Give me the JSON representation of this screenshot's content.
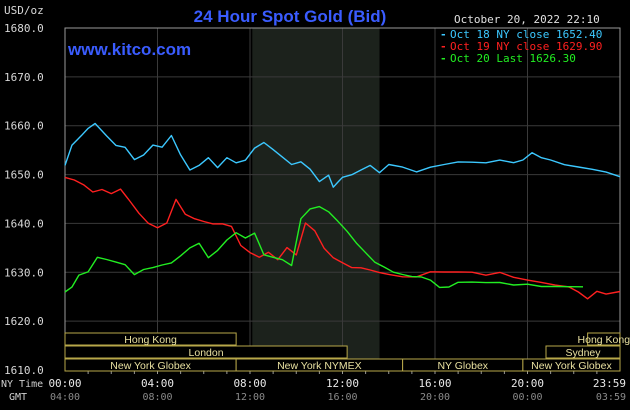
{
  "chart_data": {
    "type": "line",
    "title": "24 Hour Spot Gold (Bid)",
    "timestamp": "October 20, 2022 22:10",
    "watermark": "www.kitco.com",
    "y_unit": "USD/oz",
    "ylim": [
      1610,
      1680
    ],
    "y_ticks": [
      {
        "value": 1680,
        "label": "1680.0"
      },
      {
        "value": 1670,
        "label": "1670.0"
      },
      {
        "value": 1660,
        "label": "1660.0"
      },
      {
        "value": 1650,
        "label": "1650.0"
      },
      {
        "value": 1640,
        "label": "1640.0"
      },
      {
        "value": 1630,
        "label": "1630.0"
      },
      {
        "value": 1620,
        "label": "1620.0"
      },
      {
        "value": 1610,
        "label": "1610.0"
      }
    ],
    "xlim": [
      0,
      24
    ],
    "x_ticks": [
      {
        "hour": 0,
        "ny": "00:00",
        "gmt": "04:00"
      },
      {
        "hour": 4,
        "ny": "04:00",
        "gmt": "08:00"
      },
      {
        "hour": 8,
        "ny": "08:00",
        "gmt": "12:00"
      },
      {
        "hour": 12,
        "ny": "12:00",
        "gmt": "16:00"
      },
      {
        "hour": 16,
        "ny": "16:00",
        "gmt": "20:00"
      },
      {
        "hour": 20,
        "ny": "20:00",
        "gmt": "00:00"
      },
      {
        "hour": 24,
        "ny": "23:59",
        "gmt": "03:59"
      }
    ],
    "x_axis_labels": {
      "ny": "NY Time",
      "gmt": "GMT"
    },
    "nymex_shade": [
      8.1,
      13.6
    ],
    "legend_placement": "top-right",
    "series": [
      {
        "name": "Oct 18 NY close 1652.40",
        "color": "#3cc8ff",
        "x": [
          0,
          0.3,
          0.7,
          1.0,
          1.3,
          1.8,
          2.2,
          2.6,
          3.0,
          3.4,
          3.8,
          4.2,
          4.6,
          5.0,
          5.4,
          5.8,
          6.2,
          6.6,
          7.0,
          7.4,
          7.8,
          8.2,
          8.6,
          9.0,
          9.4,
          9.8,
          10.2,
          10.6,
          11.0,
          11.4,
          11.6,
          11.8,
          12.0,
          12.4,
          12.8,
          13.2,
          13.6,
          14.0,
          14.6,
          15.2,
          15.8,
          16.4,
          17.0,
          17.6,
          18.2,
          18.8,
          19.4,
          19.8,
          20.2,
          20.6,
          21.0,
          21.6,
          22.2,
          22.8,
          23.4,
          24.0
        ],
        "values": [
          1652,
          1656,
          1658,
          1659.5,
          1660.5,
          1658,
          1656,
          1655.5,
          1653,
          1654,
          1656,
          1655.5,
          1658,
          1654,
          1651,
          1652,
          1653.5,
          1651.5,
          1653.5,
          1652.5,
          1653,
          1655.5,
          1656.5,
          1655,
          1653.5,
          1652,
          1652.5,
          1651,
          1648.5,
          1650,
          1647.5,
          1648.5,
          1649.5,
          1650,
          1651,
          1652,
          1650.5,
          1652,
          1651.5,
          1650.5,
          1651.5,
          1652,
          1652.5,
          1652.5,
          1652.5,
          1653,
          1652.5,
          1653,
          1654.5,
          1653.5,
          1653,
          1652,
          1651.5,
          1651,
          1650.5,
          1649.5
        ]
      },
      {
        "name": "Oct 19 NY close 1629.90",
        "color": "#ff2020",
        "x": [
          0,
          0.4,
          0.8,
          1.2,
          1.6,
          2.0,
          2.4,
          2.8,
          3.2,
          3.6,
          4.0,
          4.4,
          4.8,
          5.2,
          5.6,
          6.0,
          6.4,
          6.8,
          7.2,
          7.6,
          8.0,
          8.4,
          8.8,
          9.2,
          9.6,
          10.0,
          10.4,
          10.8,
          11.2,
          11.6,
          12.0,
          12.4,
          12.8,
          13.2,
          13.6,
          14.0,
          14.6,
          15.2,
          15.8,
          16.4,
          17.0,
          17.6,
          18.2,
          18.8,
          19.4,
          20.0,
          20.6,
          21.2,
          21.8,
          22.2,
          22.6,
          23.0,
          23.4,
          24.0
        ],
        "values": [
          1649.5,
          1649,
          1648,
          1646.5,
          1647,
          1646,
          1647,
          1644.5,
          1642,
          1640,
          1639,
          1640,
          1645,
          1642,
          1641,
          1640.5,
          1640,
          1640,
          1639.5,
          1635.5,
          1634,
          1633,
          1634,
          1632.5,
          1635,
          1633.5,
          1640,
          1638.5,
          1635,
          1633,
          1632,
          1631,
          1631,
          1630.5,
          1630,
          1629.5,
          1629,
          1629,
          1630,
          1630,
          1630,
          1630,
          1629.5,
          1630,
          1629,
          1628.5,
          1628,
          1627.5,
          1627,
          1626,
          1624.5,
          1626,
          1625.5,
          1626
        ]
      },
      {
        "name": "Oct 20 Last 1626.30",
        "color": "#22ee22",
        "x": [
          0,
          0.3,
          0.6,
          1.0,
          1.4,
          1.8,
          2.2,
          2.6,
          3.0,
          3.4,
          3.8,
          4.2,
          4.6,
          5.0,
          5.4,
          5.8,
          6.2,
          6.6,
          7.0,
          7.4,
          7.8,
          8.2,
          8.6,
          9.0,
          9.4,
          9.8,
          10.2,
          10.6,
          11.0,
          11.4,
          11.8,
          12.2,
          12.6,
          13.0,
          13.4,
          13.8,
          14.2,
          14.6,
          15.0,
          15.4,
          15.8,
          16.2,
          16.6,
          17.0,
          17.6,
          18.2,
          18.8,
          19.4,
          20.0,
          20.6,
          21.2,
          21.8,
          22.4
        ],
        "values": [
          1626,
          1627,
          1629.5,
          1630,
          1633,
          1632.5,
          1632,
          1631.5,
          1629.5,
          1630.5,
          1631,
          1631.5,
          1632,
          1633.5,
          1635,
          1636,
          1633,
          1634.5,
          1636.5,
          1638,
          1637,
          1638,
          1633.5,
          1633,
          1632.5,
          1631.5,
          1641,
          1643,
          1643.5,
          1642.5,
          1640.5,
          1638.5,
          1636,
          1634,
          1632,
          1631,
          1630,
          1629.5,
          1629,
          1629,
          1628.5,
          1627,
          1627,
          1628,
          1628,
          1628,
          1628,
          1627.5,
          1627.5,
          1627,
          1627,
          1627,
          1627
        ]
      }
    ],
    "sessions": [
      {
        "label": "Hong Kong",
        "row": 0,
        "start": 0,
        "end": 7.4
      },
      {
        "label": "Hong Kong",
        "row": 0,
        "start": 22.6,
        "end": 24
      },
      {
        "label": "London",
        "row": 1,
        "start": 0,
        "end": 12.2
      },
      {
        "label": "Sydney",
        "row": 1,
        "start": 20.8,
        "end": 24
      },
      {
        "label": "New York Globex",
        "row": 2,
        "start": 0,
        "end": 7.4
      },
      {
        "label": "New York NYMEX",
        "row": 2,
        "start": 7.4,
        "end": 14.6
      },
      {
        "label": "NY Globex",
        "row": 2,
        "start": 14.6,
        "end": 19.8
      },
      {
        "label": "New York Globex",
        "row": 2,
        "start": 19.8,
        "end": 24
      }
    ]
  }
}
